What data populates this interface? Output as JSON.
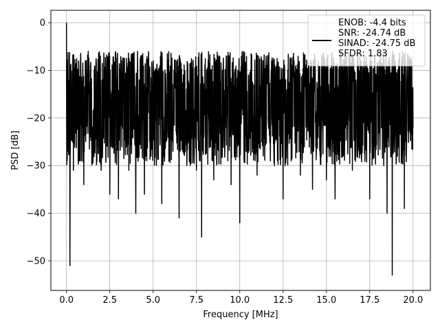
{
  "chart_data": {
    "type": "line",
    "title": "",
    "xlabel": "Frequency [MHz]",
    "ylabel": "PSD [dB]",
    "xlim": [
      -0.9,
      21.0
    ],
    "ylim": [
      -56.2,
      2.6
    ],
    "xticks": [
      0.0,
      2.5,
      5.0,
      7.5,
      10.0,
      12.5,
      15.0,
      17.5,
      20.0
    ],
    "xtick_labels": [
      "0.0",
      "2.5",
      "5.0",
      "7.5",
      "10.0",
      "12.5",
      "15.0",
      "17.5",
      "20.0"
    ],
    "yticks": [
      0,
      -10,
      -20,
      -30,
      -40,
      -50
    ],
    "ytick_labels": [
      "0",
      "−10",
      "−20",
      "−30",
      "−40",
      "−50"
    ],
    "grid": true,
    "legend_position": "top-right",
    "legend": [
      "ENOB: -4.4 bits",
      "SNR: -24.74 dB",
      "SINAD: -24.75 dB",
      "SFDR: 1.83"
    ],
    "series": [
      {
        "color": "#000000",
        "x": [
          0.0,
          0.05,
          0.1,
          0.2,
          0.3,
          0.4,
          0.6,
          0.8,
          1.0,
          1.2,
          1.5,
          1.8,
          2.0,
          2.2,
          2.5,
          2.8,
          3.0,
          3.3,
          3.6,
          4.0,
          4.2,
          4.5,
          5.0,
          5.5,
          6.0,
          6.5,
          7.0,
          7.5,
          7.8,
          8.0,
          8.5,
          9.0,
          9.5,
          10.0,
          10.5,
          11.0,
          11.5,
          12.0,
          12.5,
          13.0,
          13.5,
          14.0,
          14.2,
          14.5,
          15.0,
          15.5,
          16.0,
          16.5,
          17.0,
          17.5,
          18.0,
          18.5,
          18.8,
          19.0,
          19.5,
          20.0
        ],
        "y": [
          0.0,
          -9.0,
          -27.0,
          -51.0,
          -22.0,
          -31.0,
          -15.0,
          -29.0,
          -34.0,
          -14.0,
          -27.0,
          -21.0,
          -31.0,
          -14.0,
          -36.0,
          -20.0,
          -37.0,
          -16.0,
          -31.0,
          -40.0,
          -12.0,
          -36.0,
          -10.0,
          -38.0,
          -13.0,
          -41.0,
          -9.0,
          -31.0,
          -45.0,
          -13.0,
          -33.0,
          -10.0,
          -34.0,
          -42.0,
          -11.0,
          -32.0,
          -9.0,
          -30.0,
          -37.0,
          -12.0,
          -32.0,
          -10.0,
          -35.0,
          -15.0,
          -33.0,
          -37.0,
          -10.0,
          -31.0,
          -8.0,
          -37.0,
          -11.0,
          -40.0,
          -53.0,
          -13.0,
          -39.0,
          -22.0
        ]
      }
    ]
  }
}
